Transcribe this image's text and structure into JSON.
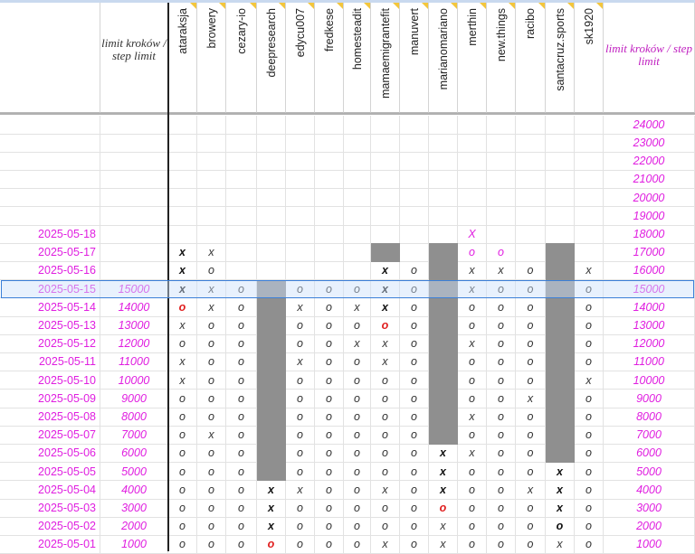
{
  "header": {
    "limit_label_left": "limit kroków / step limit",
    "limit_label_right": "limit kroków / step limit",
    "users": [
      "ataraksja",
      "browery",
      "cezary-io",
      "deepresearch",
      "edycu007",
      "fredkese",
      "homesteadit",
      "mamaemigrantefit",
      "manuvert",
      "marianomariano",
      "merthin",
      "new.things",
      "racibo",
      "santacruz.sports",
      "sk1920"
    ]
  },
  "top_limits": [
    "24000",
    "23000",
    "22000",
    "21000",
    "20000",
    "19000"
  ],
  "rows": [
    {
      "date": "2025-05-18",
      "limit": "",
      "right": "18000",
      "m": [
        "",
        "",
        "",
        "",
        "",
        "",
        "",
        "",
        "",
        "",
        "X",
        "",
        "",
        "",
        ""
      ],
      "s": [
        "",
        "",
        "",
        "",
        "",
        "",
        "",
        "",
        "",
        "",
        "pink",
        "",
        "",
        "",
        ""
      ]
    },
    {
      "date": "2025-05-17",
      "limit": "",
      "right": "17000",
      "m": [
        "X",
        "x",
        "",
        "",
        "",
        "",
        "",
        "",
        "",
        "",
        "o",
        "o",
        "",
        "",
        ""
      ],
      "s": [
        "B",
        "",
        "",
        "",
        "",
        "",
        "",
        "",
        "",
        "",
        "pink",
        "pink",
        "",
        "",
        ""
      ]
    },
    {
      "date": "2025-05-16",
      "limit": "",
      "right": "16000",
      "m": [
        "X",
        "o",
        "",
        "",
        "",
        "",
        "",
        "X",
        "o",
        "",
        "x",
        "x",
        "o",
        "",
        "x"
      ],
      "s": [
        "B",
        "",
        "",
        "",
        "",
        "",
        "",
        "B",
        "",
        "",
        "",
        "",
        "",
        "",
        ""
      ]
    },
    {
      "date": "2025-05-15",
      "limit": "15000",
      "right": "15000",
      "m": [
        "X",
        "x",
        "o",
        "",
        "o",
        "o",
        "o",
        "X",
        "o",
        "",
        "x",
        "o",
        "o",
        "",
        "o"
      ],
      "s": [
        "B",
        "",
        "",
        "",
        "",
        "",
        "",
        "B",
        "",
        "",
        "",
        "",
        "",
        "",
        ""
      ]
    },
    {
      "date": "2025-05-14",
      "limit": "14000",
      "right": "14000",
      "m": [
        "o",
        "x",
        "o",
        "",
        "x",
        "o",
        "x",
        "X",
        "o",
        "",
        "o",
        "o",
        "o",
        "",
        "o"
      ],
      "s": [
        "red",
        "",
        "",
        "",
        "",
        "",
        "",
        "B",
        "",
        "",
        "",
        "",
        "",
        "",
        ""
      ]
    },
    {
      "date": "2025-05-13",
      "limit": "13000",
      "right": "13000",
      "m": [
        "x",
        "o",
        "o",
        "",
        "o",
        "o",
        "o",
        "o",
        "o",
        "",
        "o",
        "o",
        "o",
        "",
        "o"
      ],
      "s": [
        "",
        "",
        "",
        "",
        "",
        "",
        "",
        "red",
        "",
        "",
        "",
        "",
        "",
        "",
        ""
      ]
    },
    {
      "date": "2025-05-12",
      "limit": "12000",
      "right": "12000",
      "m": [
        "o",
        "o",
        "o",
        "",
        "o",
        "o",
        "x",
        "x",
        "o",
        "",
        "x",
        "o",
        "o",
        "",
        "o"
      ],
      "s": [
        "",
        "",
        "",
        "",
        "",
        "",
        "",
        "",
        "",
        "",
        "",
        "",
        "",
        "",
        ""
      ]
    },
    {
      "date": "2025-05-11",
      "limit": "11000",
      "right": "11000",
      "m": [
        "x",
        "o",
        "o",
        "",
        "x",
        "o",
        "o",
        "x",
        "o",
        "",
        "o",
        "o",
        "o",
        "",
        "o"
      ],
      "s": [
        "",
        "",
        "",
        "",
        "",
        "",
        "",
        "",
        "",
        "",
        "",
        "",
        "",
        "",
        ""
      ]
    },
    {
      "date": "2025-05-10",
      "limit": "10000",
      "right": "10000",
      "m": [
        "x",
        "o",
        "o",
        "",
        "o",
        "o",
        "o",
        "o",
        "o",
        "",
        "o",
        "o",
        "o",
        "",
        "x"
      ],
      "s": [
        "",
        "",
        "",
        "",
        "",
        "",
        "",
        "",
        "",
        "",
        "",
        "",
        "",
        "",
        ""
      ]
    },
    {
      "date": "2025-05-09",
      "limit": "9000",
      "right": "9000",
      "m": [
        "o",
        "o",
        "o",
        "",
        "o",
        "o",
        "o",
        "o",
        "o",
        "",
        "o",
        "o",
        "x",
        "",
        "o"
      ],
      "s": [
        "",
        "",
        "",
        "",
        "",
        "",
        "",
        "",
        "",
        "",
        "",
        "",
        "",
        "",
        ""
      ]
    },
    {
      "date": "2025-05-08",
      "limit": "8000",
      "right": "8000",
      "m": [
        "o",
        "o",
        "o",
        "",
        "o",
        "o",
        "o",
        "o",
        "o",
        "",
        "x",
        "o",
        "o",
        "",
        "o"
      ],
      "s": [
        "",
        "",
        "",
        "",
        "",
        "",
        "",
        "",
        "",
        "",
        "",
        "",
        "",
        "",
        ""
      ]
    },
    {
      "date": "2025-05-07",
      "limit": "7000",
      "right": "7000",
      "m": [
        "o",
        "x",
        "o",
        "",
        "o",
        "o",
        "o",
        "o",
        "o",
        "",
        "o",
        "o",
        "o",
        "",
        "o"
      ],
      "s": [
        "",
        "",
        "",
        "",
        "",
        "",
        "",
        "",
        "",
        "",
        "",
        "",
        "",
        "",
        ""
      ]
    },
    {
      "date": "2025-05-06",
      "limit": "6000",
      "right": "6000",
      "m": [
        "o",
        "o",
        "o",
        "",
        "o",
        "o",
        "o",
        "o",
        "o",
        "X",
        "x",
        "o",
        "o",
        "",
        "o"
      ],
      "s": [
        "",
        "",
        "",
        "",
        "",
        "",
        "",
        "",
        "",
        "B",
        "",
        "",
        "",
        "",
        ""
      ]
    },
    {
      "date": "2025-05-05",
      "limit": "5000",
      "right": "5000",
      "m": [
        "o",
        "o",
        "o",
        "",
        "o",
        "o",
        "o",
        "o",
        "o",
        "X",
        "o",
        "o",
        "o",
        "X",
        "o"
      ],
      "s": [
        "",
        "",
        "",
        "",
        "",
        "",
        "",
        "",
        "",
        "B",
        "",
        "",
        "",
        "B",
        ""
      ]
    },
    {
      "date": "2025-05-04",
      "limit": "4000",
      "right": "4000",
      "m": [
        "o",
        "o",
        "o",
        "X",
        "x",
        "o",
        "o",
        "x",
        "o",
        "X",
        "o",
        "o",
        "x",
        "X",
        "o"
      ],
      "s": [
        "",
        "",
        "",
        "B",
        "",
        "",
        "",
        "",
        "",
        "B",
        "",
        "",
        "",
        "B",
        ""
      ]
    },
    {
      "date": "2025-05-03",
      "limit": "3000",
      "right": "3000",
      "m": [
        "o",
        "o",
        "o",
        "X",
        "o",
        "o",
        "o",
        "o",
        "o",
        "o",
        "o",
        "o",
        "o",
        "X",
        "o"
      ],
      "s": [
        "",
        "",
        "",
        "B",
        "",
        "",
        "",
        "",
        "",
        "red",
        "",
        "",
        "",
        "B",
        ""
      ]
    },
    {
      "date": "2025-05-02",
      "limit": "2000",
      "right": "2000",
      "m": [
        "o",
        "o",
        "o",
        "X",
        "o",
        "o",
        "o",
        "o",
        "o",
        "x",
        "o",
        "o",
        "o",
        "o",
        "o"
      ],
      "s": [
        "",
        "",
        "",
        "B",
        "",
        "",
        "",
        "",
        "",
        "",
        "",
        "",
        "",
        "B",
        ""
      ]
    },
    {
      "date": "2025-05-01",
      "limit": "1000",
      "right": "1000",
      "m": [
        "o",
        "o",
        "o",
        "o",
        "o",
        "o",
        "o",
        "x",
        "o",
        "x",
        "o",
        "o",
        "o",
        "x",
        "o"
      ],
      "s": [
        "",
        "",
        "",
        "red",
        "",
        "",
        "",
        "",
        "",
        "",
        "",
        "",
        "",
        "",
        ""
      ]
    }
  ]
}
